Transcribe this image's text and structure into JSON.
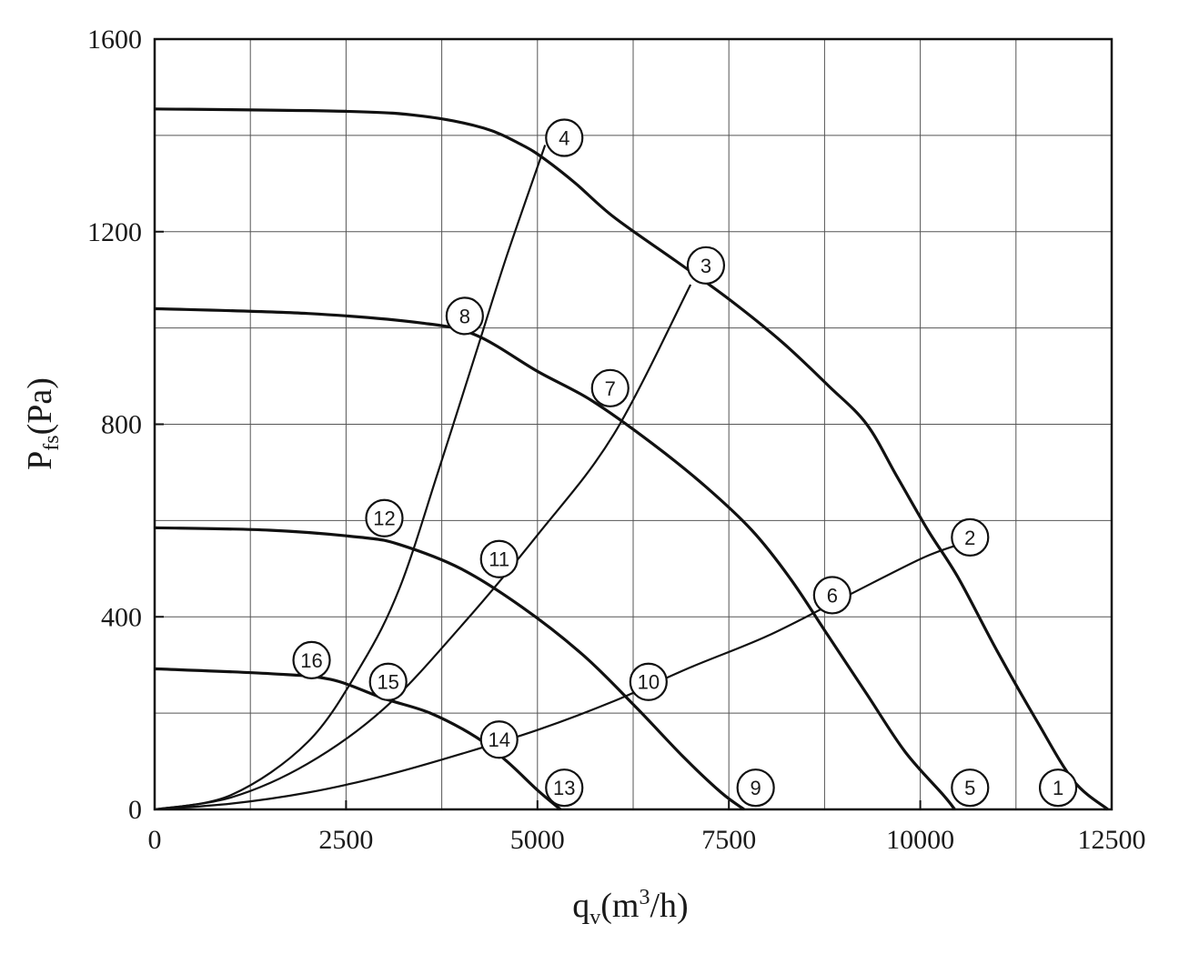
{
  "chart_data": {
    "type": "line",
    "xlabel": {
      "main": "q",
      "sub": "v",
      "rest": "(m",
      "sup": "3",
      "tail": "/h)"
    },
    "ylabel": {
      "main": "P",
      "sub": "fs",
      "rest": "(Pa)"
    },
    "xlim": [
      0,
      12500
    ],
    "ylim": [
      0,
      1600
    ],
    "x_ticks": [
      0,
      2500,
      5000,
      7500,
      10000,
      12500
    ],
    "y_ticks": [
      0,
      400,
      800,
      1200,
      1600
    ],
    "x_tick_labels": [
      "0",
      "2500",
      "5000",
      "7500",
      "10000",
      "12500"
    ],
    "y_tick_labels": [
      "0",
      "400",
      "800",
      "1200",
      "1600"
    ],
    "grid": {
      "x_step": 1250,
      "y_step": 200,
      "on": true
    },
    "fan_curves": [
      {
        "points": [
          [
            0,
            1455
          ],
          [
            2500,
            1450
          ],
          [
            3500,
            1440
          ],
          [
            4300,
            1415
          ],
          [
            4800,
            1380
          ],
          [
            5100,
            1350
          ],
          [
            5500,
            1300
          ],
          [
            6000,
            1230
          ],
          [
            6800,
            1140
          ],
          [
            7500,
            1060
          ],
          [
            8200,
            970
          ],
          [
            8800,
            880
          ],
          [
            9300,
            800
          ],
          [
            9700,
            690
          ],
          [
            10100,
            580
          ],
          [
            10500,
            480
          ],
          [
            11000,
            330
          ],
          [
            11500,
            190
          ],
          [
            12000,
            60
          ],
          [
            12450,
            0
          ]
        ]
      },
      {
        "points": [
          [
            0,
            1040
          ],
          [
            2000,
            1030
          ],
          [
            3500,
            1010
          ],
          [
            4200,
            985
          ],
          [
            5000,
            910
          ],
          [
            5700,
            850
          ],
          [
            6500,
            760
          ],
          [
            7200,
            670
          ],
          [
            7800,
            580
          ],
          [
            8300,
            480
          ],
          [
            8800,
            360
          ],
          [
            9300,
            240
          ],
          [
            9800,
            120
          ],
          [
            10300,
            30
          ],
          [
            10450,
            0
          ]
        ]
      },
      {
        "points": [
          [
            0,
            585
          ],
          [
            1500,
            580
          ],
          [
            2700,
            565
          ],
          [
            3200,
            550
          ],
          [
            4000,
            500
          ],
          [
            4800,
            420
          ],
          [
            5600,
            320
          ],
          [
            6300,
            210
          ],
          [
            6900,
            110
          ],
          [
            7400,
            35
          ],
          [
            7700,
            0
          ]
        ]
      },
      {
        "points": [
          [
            0,
            292
          ],
          [
            1500,
            282
          ],
          [
            2300,
            270
          ],
          [
            3000,
            230
          ],
          [
            3600,
            200
          ],
          [
            4200,
            150
          ],
          [
            4600,
            100
          ],
          [
            5000,
            40
          ],
          [
            5300,
            0
          ]
        ]
      }
    ],
    "system_curves": [
      {
        "points": [
          [
            0,
            0
          ],
          [
            1000,
            30
          ],
          [
            2000,
            140
          ],
          [
            2700,
            300
          ],
          [
            3200,
            460
          ],
          [
            3700,
            700
          ],
          [
            4200,
            950
          ],
          [
            4600,
            1150
          ],
          [
            5100,
            1380
          ]
        ]
      },
      {
        "points": [
          [
            0,
            0
          ],
          [
            1000,
            25
          ],
          [
            2000,
            95
          ],
          [
            3000,
            210
          ],
          [
            4000,
            380
          ],
          [
            5000,
            570
          ],
          [
            6000,
            780
          ],
          [
            7000,
            1090
          ]
        ]
      },
      {
        "points": [
          [
            0,
            0
          ],
          [
            1000,
            12
          ],
          [
            2000,
            35
          ],
          [
            3000,
            70
          ],
          [
            4000,
            115
          ],
          [
            5000,
            165
          ],
          [
            6000,
            225
          ],
          [
            7000,
            295
          ],
          [
            8000,
            360
          ],
          [
            9000,
            440
          ],
          [
            10000,
            520
          ],
          [
            10500,
            550
          ]
        ]
      }
    ],
    "markers": [
      {
        "label": "1",
        "x": 11800,
        "y": 45
      },
      {
        "label": "2",
        "x": 10650,
        "y": 565
      },
      {
        "label": "3",
        "x": 7200,
        "y": 1130
      },
      {
        "label": "4",
        "x": 5350,
        "y": 1395
      },
      {
        "label": "5",
        "x": 10650,
        "y": 45
      },
      {
        "label": "6",
        "x": 8850,
        "y": 445
      },
      {
        "label": "7",
        "x": 5950,
        "y": 875
      },
      {
        "label": "8",
        "x": 4050,
        "y": 1025
      },
      {
        "label": "9",
        "x": 7850,
        "y": 45
      },
      {
        "label": "10",
        "x": 6450,
        "y": 265
      },
      {
        "label": "11",
        "x": 4500,
        "y": 520
      },
      {
        "label": "12",
        "x": 3000,
        "y": 605
      },
      {
        "label": "13",
        "x": 5350,
        "y": 45
      },
      {
        "label": "14",
        "x": 4500,
        "y": 145
      },
      {
        "label": "15",
        "x": 3050,
        "y": 265
      },
      {
        "label": "16",
        "x": 2050,
        "y": 310
      }
    ]
  }
}
